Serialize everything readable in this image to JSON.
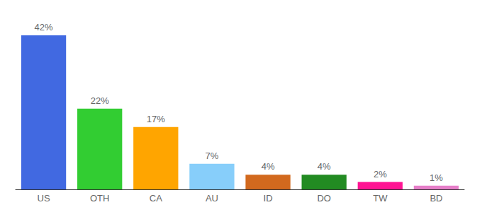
{
  "chart_data": {
    "type": "bar",
    "categories": [
      "US",
      "OTH",
      "CA",
      "AU",
      "ID",
      "DO",
      "TW",
      "BD"
    ],
    "values": [
      42,
      22,
      17,
      7,
      4,
      4,
      2,
      1
    ],
    "value_labels": [
      "42%",
      "22%",
      "17%",
      "7%",
      "4%",
      "4%",
      "2%",
      "1%"
    ],
    "colors": [
      "#4169e1",
      "#32cd32",
      "#ffa500",
      "#87cefa",
      "#d2691e",
      "#228b22",
      "#ff1493",
      "#e67fc9"
    ],
    "ylim": [
      0,
      42
    ],
    "grid": false,
    "data_labels": true,
    "tick_labels": "x"
  }
}
